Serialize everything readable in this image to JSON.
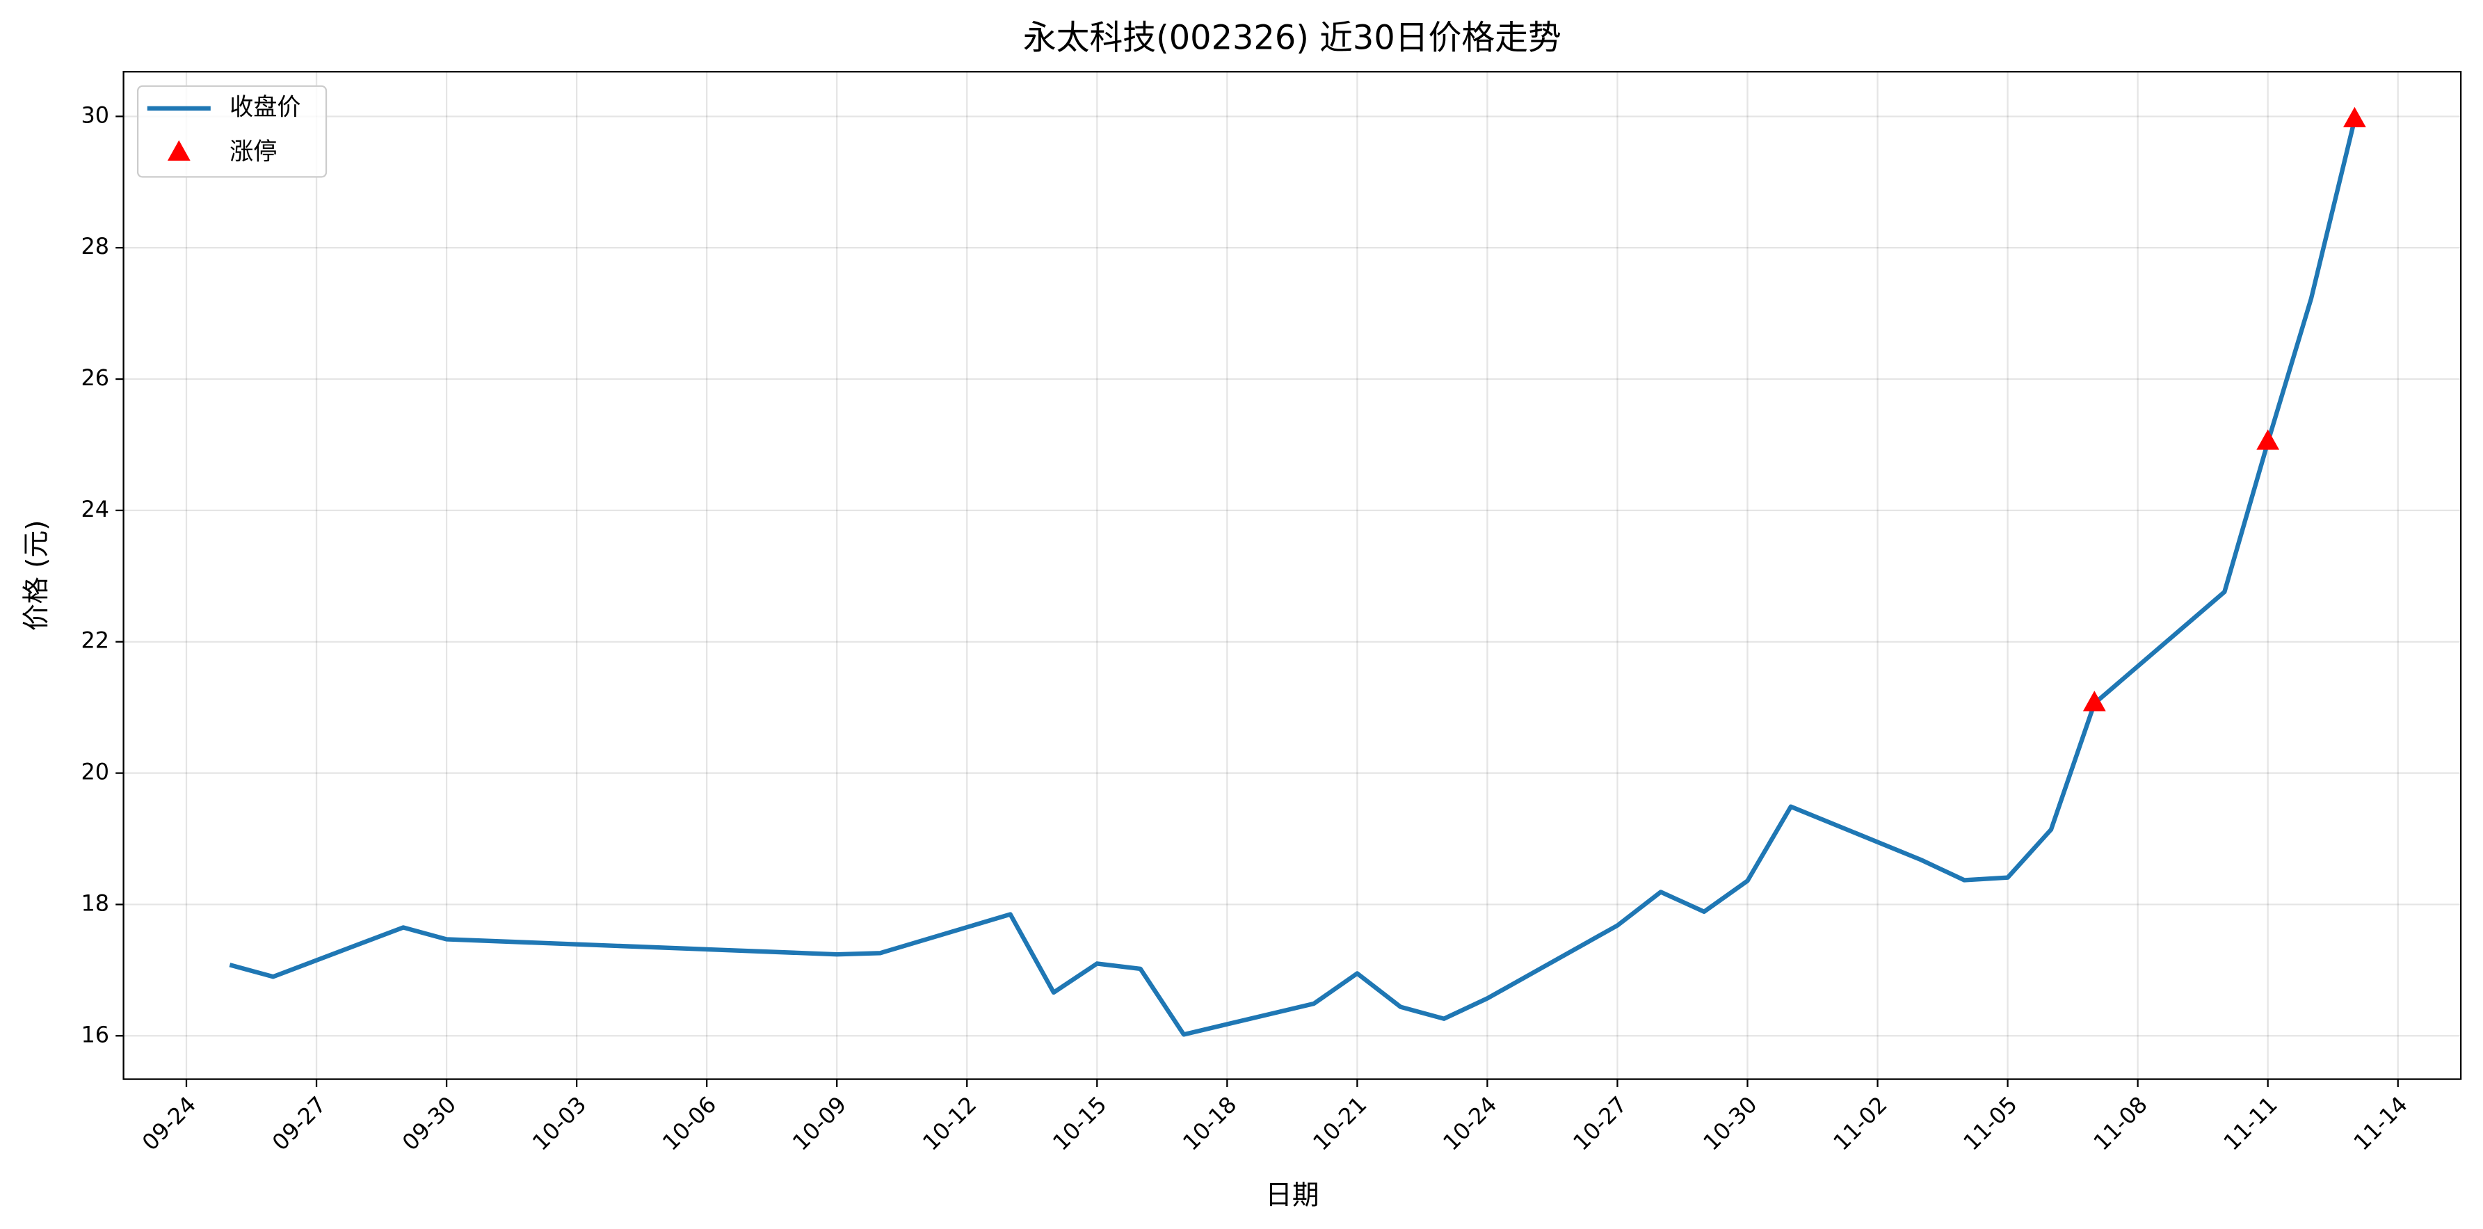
{
  "chart_data": {
    "type": "line",
    "title": "永太科技(002326) 近30日价格走势",
    "xlabel": "日期",
    "ylabel": "价格 (元)",
    "ylim": [
      15.34,
      30.68
    ],
    "yticks": [
      16,
      18,
      20,
      22,
      24,
      26,
      28,
      30
    ],
    "xticks": [
      "09-24",
      "09-27",
      "09-30",
      "10-03",
      "10-06",
      "10-09",
      "10-12",
      "10-15",
      "10-18",
      "10-21",
      "10-24",
      "10-27",
      "10-30",
      "11-02",
      "11-05",
      "11-08",
      "11-11",
      "11-14"
    ],
    "grid": true,
    "legend": "upper left",
    "series": [
      {
        "name": "收盘价",
        "type": "line",
        "color": "#1f77b4",
        "x": [
          "09-25",
          "09-26",
          "09-29",
          "09-30",
          "10-09",
          "10-10",
          "10-13",
          "10-14",
          "10-15",
          "10-16",
          "10-17",
          "10-20",
          "10-21",
          "10-22",
          "10-23",
          "10-24",
          "10-27",
          "10-28",
          "10-29",
          "10-30",
          "10-31",
          "11-03",
          "11-04",
          "11-05",
          "11-06",
          "11-07",
          "11-10",
          "11-11",
          "11-12",
          "11-13"
        ],
        "values": [
          17.08,
          16.9,
          17.65,
          17.47,
          17.24,
          17.26,
          17.85,
          16.66,
          17.1,
          17.02,
          16.02,
          16.49,
          16.95,
          16.44,
          16.26,
          16.57,
          17.68,
          18.19,
          17.89,
          18.36,
          19.49,
          18.68,
          18.37,
          18.41,
          19.14,
          21.06,
          22.76,
          25.04,
          27.23,
          29.95
        ]
      },
      {
        "name": "涨停",
        "type": "scatter",
        "marker": "triangle",
        "color": "red",
        "x": [
          "11-07",
          "11-11",
          "11-13"
        ],
        "values": [
          21.06,
          25.04,
          29.95
        ]
      }
    ]
  }
}
